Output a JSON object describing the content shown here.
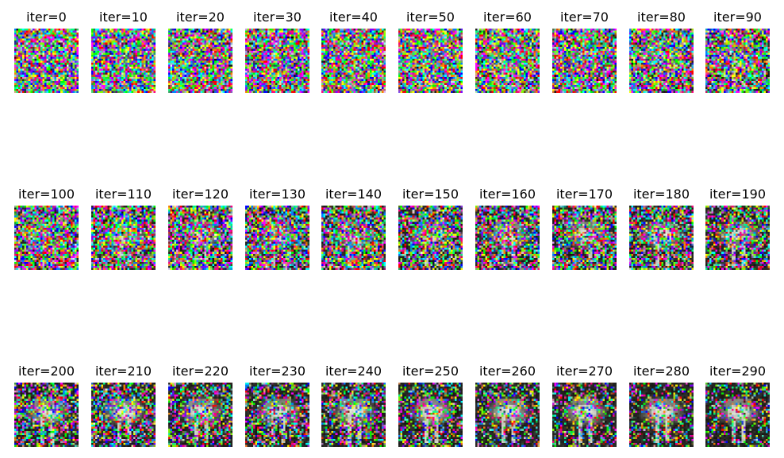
{
  "figure": {
    "panels": [
      {
        "title": "iter=0",
        "iter": 0,
        "noise_level": 1.0
      },
      {
        "title": "iter=10",
        "iter": 10,
        "noise_level": 1.0
      },
      {
        "title": "iter=20",
        "iter": 20,
        "noise_level": 0.99
      },
      {
        "title": "iter=30",
        "iter": 30,
        "noise_level": 0.98
      },
      {
        "title": "iter=40",
        "iter": 40,
        "noise_level": 0.97
      },
      {
        "title": "iter=50",
        "iter": 50,
        "noise_level": 0.96
      },
      {
        "title": "iter=60",
        "iter": 60,
        "noise_level": 0.95
      },
      {
        "title": "iter=70",
        "iter": 70,
        "noise_level": 0.93
      },
      {
        "title": "iter=80",
        "iter": 80,
        "noise_level": 0.92
      },
      {
        "title": "iter=90",
        "iter": 90,
        "noise_level": 0.9
      },
      {
        "title": "iter=100",
        "iter": 100,
        "noise_level": 0.88
      },
      {
        "title": "iter=110",
        "iter": 110,
        "noise_level": 0.86
      },
      {
        "title": "iter=120",
        "iter": 120,
        "noise_level": 0.84
      },
      {
        "title": "iter=130",
        "iter": 130,
        "noise_level": 0.82
      },
      {
        "title": "iter=140",
        "iter": 140,
        "noise_level": 0.8
      },
      {
        "title": "iter=150",
        "iter": 150,
        "noise_level": 0.78
      },
      {
        "title": "iter=160",
        "iter": 160,
        "noise_level": 0.75
      },
      {
        "title": "iter=170",
        "iter": 170,
        "noise_level": 0.72
      },
      {
        "title": "iter=180",
        "iter": 180,
        "noise_level": 0.7
      },
      {
        "title": "iter=190",
        "iter": 190,
        "noise_level": 0.67
      },
      {
        "title": "iter=200",
        "iter": 200,
        "noise_level": 0.64
      },
      {
        "title": "iter=210",
        "iter": 210,
        "noise_level": 0.61
      },
      {
        "title": "iter=220",
        "iter": 220,
        "noise_level": 0.58
      },
      {
        "title": "iter=230",
        "iter": 230,
        "noise_level": 0.55
      },
      {
        "title": "iter=240",
        "iter": 240,
        "noise_level": 0.52
      },
      {
        "title": "iter=250",
        "iter": 250,
        "noise_level": 0.49
      },
      {
        "title": "iter=260",
        "iter": 260,
        "noise_level": 0.46
      },
      {
        "title": "iter=270",
        "iter": 270,
        "noise_level": 0.43
      },
      {
        "title": "iter=280",
        "iter": 280,
        "noise_level": 0.4
      },
      {
        "title": "iter=290",
        "iter": 290,
        "noise_level": 0.37
      }
    ],
    "colors": {
      "background": "#ffffff",
      "title_text": "#000000",
      "subject_base": "#8c8f86",
      "subject_light": "#c9ccc2",
      "dark_base": "#2e2e2a"
    }
  }
}
